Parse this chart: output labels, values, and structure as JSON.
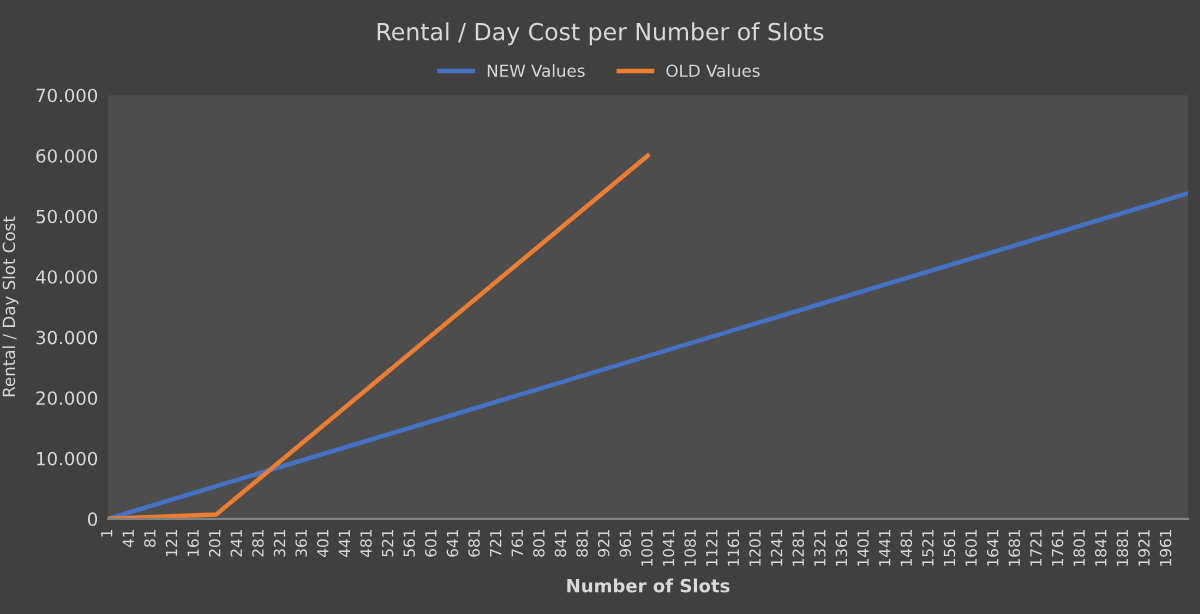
{
  "chart_data": {
    "type": "line",
    "title": "Rental / Day Cost per Number of Slots",
    "xlabel": "Number of Slots",
    "ylabel": "Rental / Day Slot Cost",
    "series": [
      {
        "name": "NEW Values",
        "color": "#4472c4",
        "x": [
          1,
          2000
        ],
        "values": [
          0,
          53800
        ]
      },
      {
        "name": "OLD Values",
        "color": "#ed7d31",
        "x": [
          1,
          201,
          1000
        ],
        "values": [
          0,
          700,
          60000
        ]
      }
    ],
    "xlim": [
      1,
      2000
    ],
    "xticks": [
      1,
      41,
      81,
      121,
      161,
      201,
      241,
      281,
      321,
      361,
      401,
      441,
      481,
      521,
      561,
      601,
      641,
      681,
      721,
      761,
      801,
      841,
      881,
      921,
      961,
      1001,
      1041,
      1081,
      1121,
      1161,
      1201,
      1241,
      1281,
      1321,
      1361,
      1401,
      1441,
      1481,
      1521,
      1561,
      1601,
      1641,
      1681,
      1721,
      1761,
      1801,
      1841,
      1881,
      1921,
      1961
    ],
    "ylim": [
      0,
      70000
    ],
    "yticks": [
      0,
      {
        "value": 10000,
        "label": "10.000"
      },
      {
        "value": 20000,
        "label": "20.000"
      },
      {
        "value": 30000,
        "label": "30.000"
      },
      {
        "value": 40000,
        "label": "40.000"
      },
      {
        "value": 50000,
        "label": "50.000"
      },
      {
        "value": 60000,
        "label": "60.000"
      },
      {
        "value": 70000,
        "label": "70.000"
      }
    ],
    "legend": "top",
    "marker": "none",
    "line_style": "solid"
  }
}
